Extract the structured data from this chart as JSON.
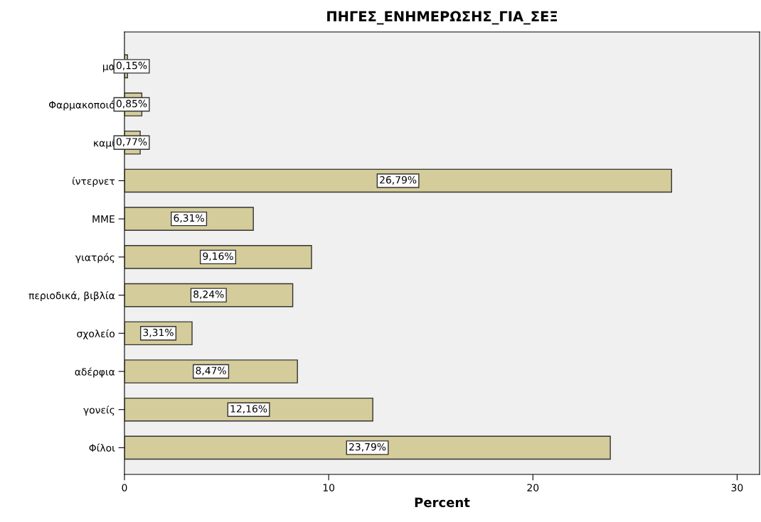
{
  "chart_data": {
    "type": "bar",
    "orientation": "horizontal",
    "title": "ΠΗΓΕΣ_ΕΝΗΜΕΡΩΣΗΣ_ΓΙΑ_ΣΕΞ",
    "xlabel": "Percent",
    "categories": [
      "μα",
      "Φαρμακοποιό",
      "καμί",
      "ίντερνετ",
      "ΜΜΕ",
      "γιατρός",
      "περιοδικά, βιβλία",
      "σχολείο",
      "αδέρφια",
      "γονείς",
      "Φίλοι"
    ],
    "values": [
      0.15,
      0.85,
      0.77,
      26.79,
      6.31,
      9.16,
      8.24,
      3.31,
      8.47,
      12.16,
      23.79
    ],
    "value_labels": [
      "0,15%",
      "0,85%",
      "0,77%",
      "26,79%",
      "6,31%",
      "9,16%",
      "8,24%",
      "3,31%",
      "8,47%",
      "12,16%",
      "23,79%"
    ],
    "color": "#d4cc9a",
    "xlim": [
      0,
      31.1
    ],
    "xticks": [
      0,
      10,
      20,
      30
    ],
    "grid": false,
    "legend": false
  }
}
